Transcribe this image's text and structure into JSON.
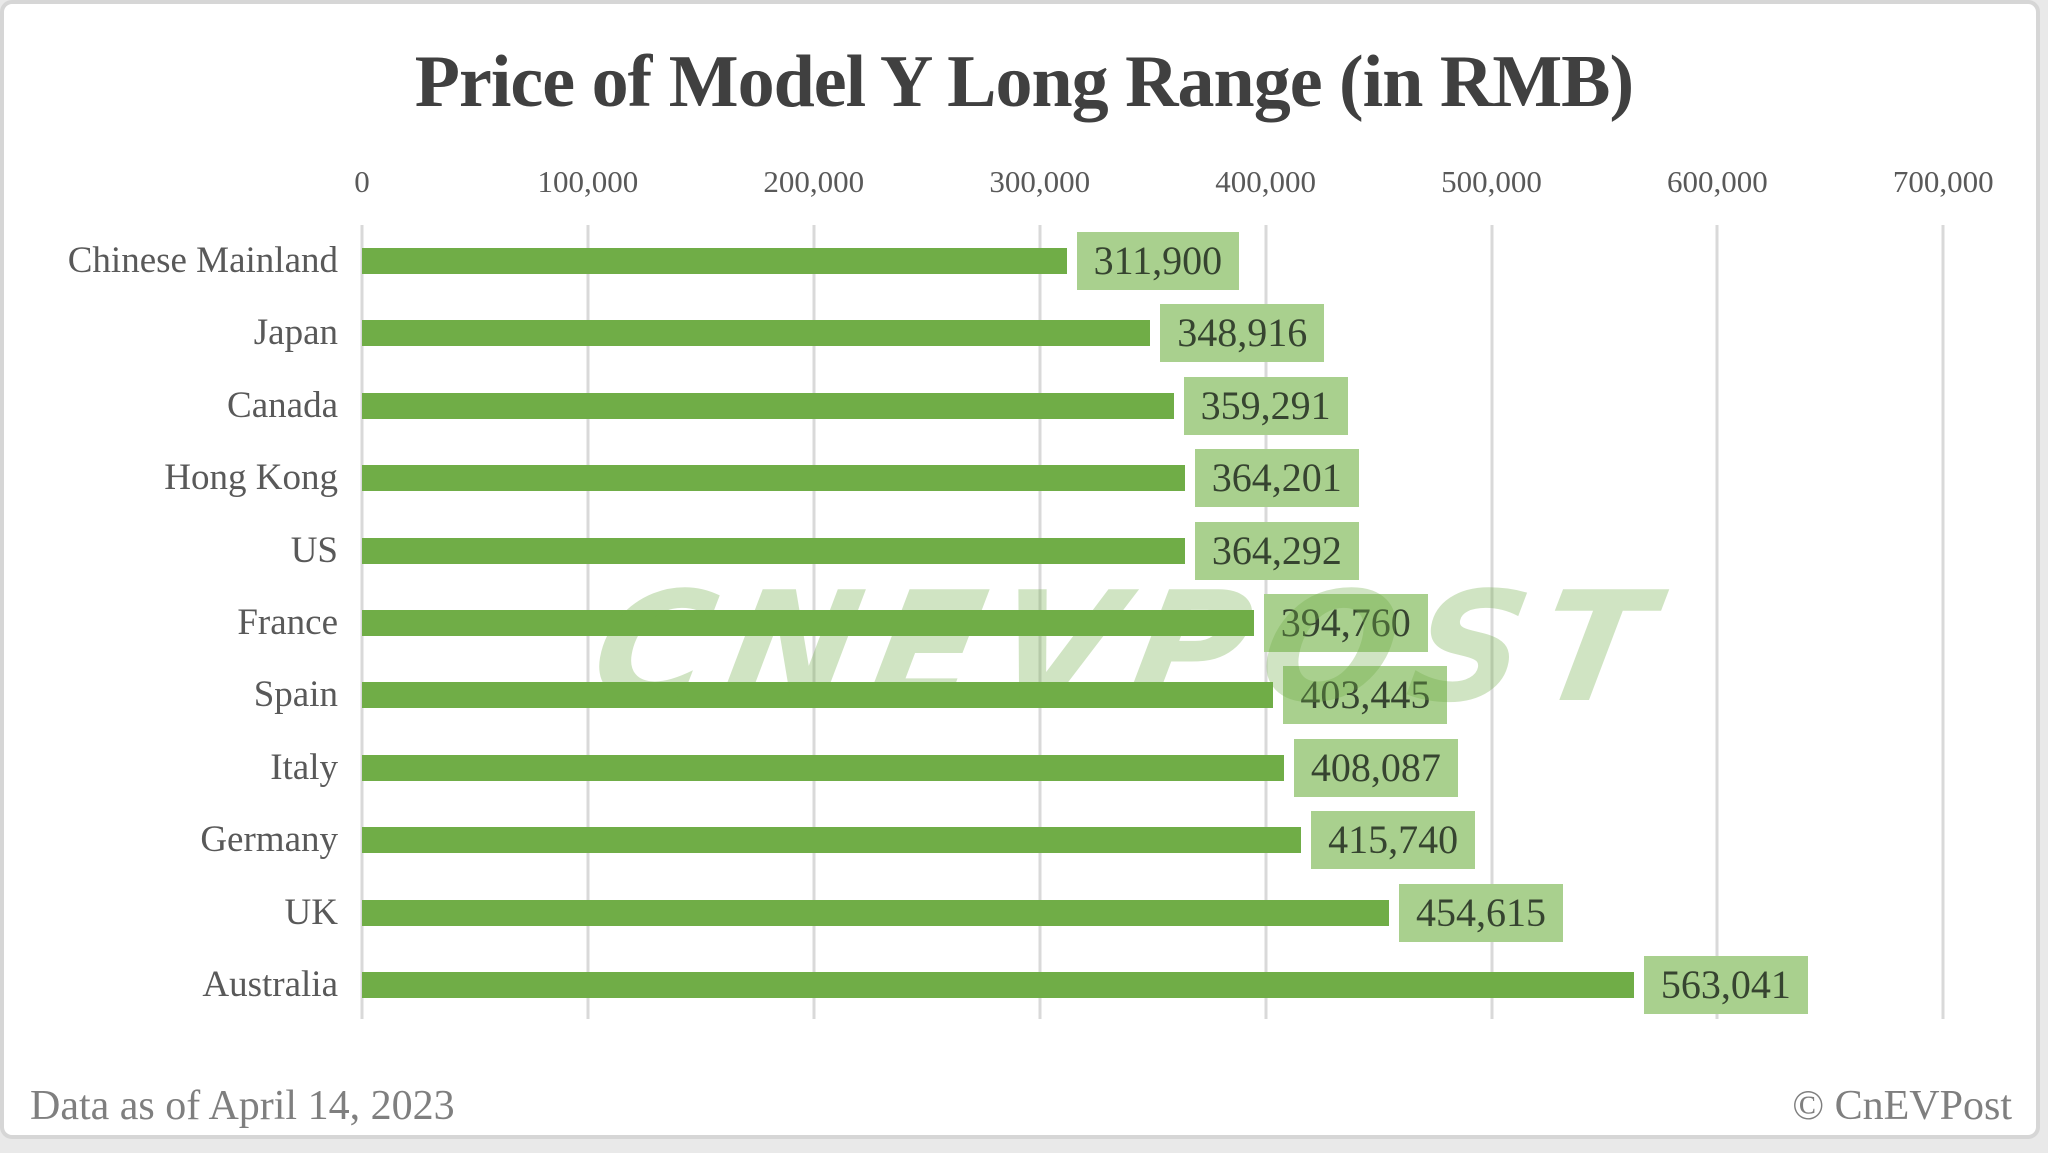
{
  "chart_data": {
    "type": "bar",
    "orientation": "horizontal",
    "title": "Price of Model Y Long Range (in RMB)",
    "categories": [
      "Chinese Mainland",
      "Japan",
      "Canada",
      "Hong Kong",
      "US",
      "France",
      "Spain",
      "Italy",
      "Germany",
      "UK",
      "Australia"
    ],
    "values": [
      311900,
      348916,
      359291,
      364201,
      364292,
      394760,
      403445,
      408087,
      415740,
      454615,
      563041
    ],
    "value_labels": [
      "311,900",
      "348,916",
      "359,291",
      "364,201",
      "364,292",
      "394,760",
      "403,445",
      "408,087",
      "415,740",
      "454,615",
      "563,041"
    ],
    "x_tick_values": [
      0,
      100000,
      200000,
      300000,
      400000,
      500000,
      600000,
      700000
    ],
    "x_tick_labels": [
      "0",
      "100,000",
      "200,000",
      "300,000",
      "400,000",
      "500,000",
      "600,000",
      "700,000"
    ],
    "xlim": [
      0,
      700000
    ],
    "grid": true,
    "legend": false,
    "colors": {
      "bar": "#70ad47",
      "value_label_bg": "#a9d08e",
      "value_label_text": "#364430",
      "gridline": "#d9d9d9",
      "axis_text": "#595959",
      "title_text": "#404040",
      "footer_text": "#7f7f7f",
      "watermark": "#70ad47"
    }
  },
  "watermark": {
    "text": "CNEVPOST"
  },
  "footer": {
    "left": "Data as of April 14, 2023",
    "right": "© CnEVPost"
  }
}
